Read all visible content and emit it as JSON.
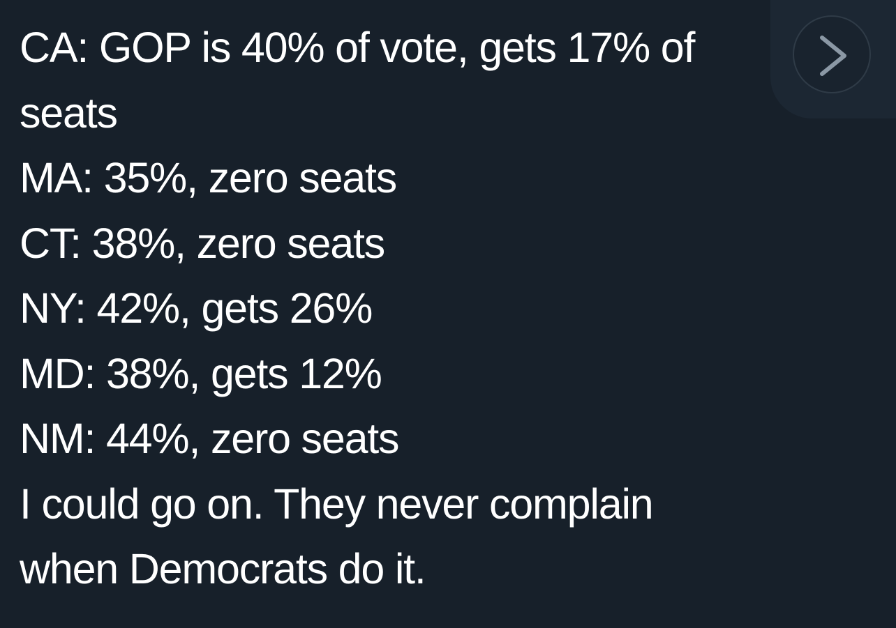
{
  "tweet": {
    "lines": [
      "CA: GOP is 40% of vote, gets 17% of",
      "seats",
      "MA: 35%, zero seats",
      "CT: 38%, zero seats",
      "NY: 42%, gets 26%",
      "MD: 38%, gets 12%",
      "NM: 44%, zero seats",
      "I could go on. They never complain",
      "when Democrats do it."
    ]
  },
  "controls": {
    "next_icon": "chevron-right-icon"
  },
  "colors": {
    "background": "#17202a",
    "text": "#ffffff",
    "button_border": "#2f3b47",
    "chevron": "#8b98a5"
  }
}
